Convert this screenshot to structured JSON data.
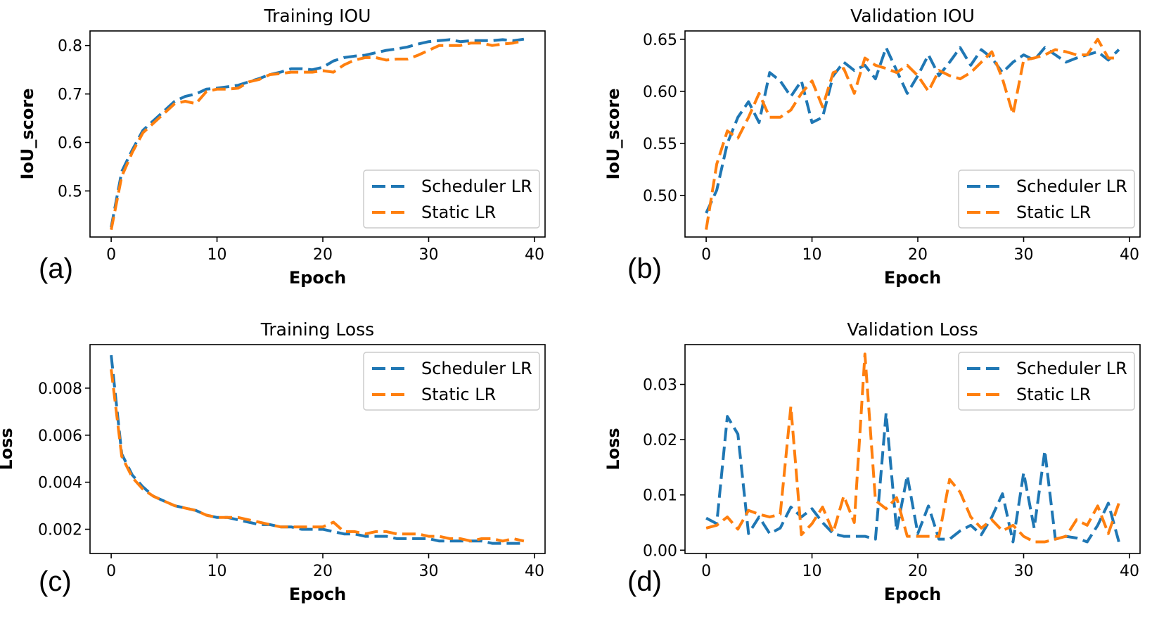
{
  "colors": {
    "scheduler": "#1f77b4",
    "static": "#ff7f0e"
  },
  "chart_data": [
    {
      "type": "line",
      "panel": "(a)",
      "title": "Training IOU",
      "xlabel": "Epoch",
      "ylabel": "IoU_score",
      "xlim": [
        -2,
        41
      ],
      "ylim": [
        0.405,
        0.83
      ],
      "xticks": [
        0,
        10,
        20,
        30,
        40
      ],
      "yticks": [
        0.5,
        0.6,
        0.7,
        0.8
      ],
      "ytick_labels": [
        "0.5",
        "0.6",
        "0.7",
        "0.8"
      ],
      "legend": "right",
      "x": [
        0,
        1,
        2,
        3,
        4,
        5,
        6,
        7,
        8,
        9,
        10,
        11,
        12,
        13,
        14,
        15,
        16,
        17,
        18,
        19,
        20,
        21,
        22,
        23,
        24,
        25,
        26,
        27,
        28,
        29,
        30,
        31,
        32,
        33,
        34,
        35,
        36,
        37,
        38,
        39
      ],
      "series": [
        {
          "name": "Scheduler LR",
          "color": "#1f77b4",
          "values": [
            0.425,
            0.54,
            0.585,
            0.625,
            0.645,
            0.665,
            0.685,
            0.695,
            0.7,
            0.71,
            0.712,
            0.715,
            0.718,
            0.725,
            0.732,
            0.74,
            0.745,
            0.752,
            0.752,
            0.75,
            0.755,
            0.768,
            0.775,
            0.778,
            0.78,
            0.785,
            0.79,
            0.793,
            0.797,
            0.803,
            0.808,
            0.81,
            0.812,
            0.808,
            0.81,
            0.81,
            0.81,
            0.812,
            0.81,
            0.813
          ]
        },
        {
          "name": "Static LR",
          "color": "#ff7f0e",
          "values": [
            0.42,
            0.53,
            0.58,
            0.62,
            0.64,
            0.66,
            0.68,
            0.685,
            0.68,
            0.705,
            0.71,
            0.71,
            0.712,
            0.725,
            0.73,
            0.74,
            0.742,
            0.745,
            0.745,
            0.745,
            0.748,
            0.745,
            0.76,
            0.77,
            0.775,
            0.775,
            0.77,
            0.772,
            0.772,
            0.78,
            0.79,
            0.8,
            0.8,
            0.8,
            0.805,
            0.805,
            0.8,
            0.803,
            0.805,
            0.81
          ]
        }
      ]
    },
    {
      "type": "line",
      "panel": "(b)",
      "title": "Validation IOU",
      "xlabel": "Epoch",
      "ylabel": "IoU_score",
      "xlim": [
        -2,
        41
      ],
      "ylim": [
        0.46,
        0.658
      ],
      "xticks": [
        0,
        10,
        20,
        30,
        40
      ],
      "yticks": [
        0.5,
        0.55,
        0.6,
        0.65
      ],
      "ytick_labels": [
        "0.50",
        "0.55",
        "0.60",
        "0.65"
      ],
      "legend": "right",
      "x": [
        0,
        1,
        2,
        3,
        4,
        5,
        6,
        7,
        8,
        9,
        10,
        11,
        12,
        13,
        14,
        15,
        16,
        17,
        18,
        19,
        20,
        21,
        22,
        23,
        24,
        25,
        26,
        27,
        28,
        29,
        30,
        31,
        32,
        33,
        34,
        35,
        36,
        37,
        38,
        39
      ],
      "series": [
        {
          "name": "Scheduler LR",
          "color": "#1f77b4",
          "values": [
            0.483,
            0.505,
            0.55,
            0.575,
            0.59,
            0.57,
            0.618,
            0.61,
            0.595,
            0.61,
            0.57,
            0.575,
            0.615,
            0.628,
            0.62,
            0.625,
            0.612,
            0.642,
            0.62,
            0.598,
            0.615,
            0.635,
            0.615,
            0.628,
            0.642,
            0.625,
            0.64,
            0.632,
            0.618,
            0.628,
            0.635,
            0.63,
            0.642,
            0.635,
            0.628,
            0.632,
            0.635,
            0.638,
            0.63,
            0.64
          ]
        },
        {
          "name": "Static LR",
          "color": "#ff7f0e",
          "values": [
            0.467,
            0.53,
            0.562,
            0.555,
            0.575,
            0.598,
            0.575,
            0.575,
            0.582,
            0.598,
            0.61,
            0.585,
            0.618,
            0.622,
            0.598,
            0.632,
            0.625,
            0.622,
            0.618,
            0.625,
            0.615,
            0.6,
            0.62,
            0.615,
            0.612,
            0.618,
            0.628,
            0.638,
            0.612,
            0.578,
            0.63,
            0.632,
            0.635,
            0.64,
            0.638,
            0.635,
            0.635,
            0.65,
            0.632,
            0.632
          ]
        }
      ]
    },
    {
      "type": "line",
      "panel": "(c)",
      "title": "Training Loss",
      "xlabel": "Epoch",
      "ylabel": "Loss",
      "xlim": [
        -2,
        41
      ],
      "ylim": [
        0.00097,
        0.00985
      ],
      "xticks": [
        0,
        10,
        20,
        30,
        40
      ],
      "yticks": [
        0.002,
        0.004,
        0.006,
        0.008
      ],
      "ytick_labels": [
        "0.002",
        "0.004",
        "0.006",
        "0.008"
      ],
      "legend": "upper right",
      "x": [
        0,
        1,
        2,
        3,
        4,
        5,
        6,
        7,
        8,
        9,
        10,
        11,
        12,
        13,
        14,
        15,
        16,
        17,
        18,
        19,
        20,
        21,
        22,
        23,
        24,
        25,
        26,
        27,
        28,
        29,
        30,
        31,
        32,
        33,
        34,
        35,
        36,
        37,
        38,
        39
      ],
      "series": [
        {
          "name": "Scheduler LR",
          "color": "#1f77b4",
          "values": [
            0.0094,
            0.0052,
            0.0043,
            0.0038,
            0.0034,
            0.0032,
            0.003,
            0.0029,
            0.0028,
            0.0026,
            0.0025,
            0.0025,
            0.0024,
            0.0023,
            0.0022,
            0.0022,
            0.0021,
            0.0021,
            0.002,
            0.002,
            0.002,
            0.0019,
            0.0018,
            0.0018,
            0.0017,
            0.0017,
            0.0017,
            0.0016,
            0.0016,
            0.0016,
            0.0016,
            0.0015,
            0.0015,
            0.0015,
            0.0015,
            0.0015,
            0.0014,
            0.0014,
            0.0014,
            0.0014
          ]
        },
        {
          "name": "Static LR",
          "color": "#ff7f0e",
          "values": [
            0.0088,
            0.0051,
            0.0042,
            0.0037,
            0.0034,
            0.0032,
            0.003,
            0.0029,
            0.0028,
            0.0026,
            0.0025,
            0.0025,
            0.0025,
            0.0024,
            0.0023,
            0.0022,
            0.0021,
            0.0021,
            0.0021,
            0.0021,
            0.0021,
            0.0023,
            0.0019,
            0.0019,
            0.0018,
            0.0019,
            0.0019,
            0.0018,
            0.0018,
            0.0018,
            0.0017,
            0.0017,
            0.0016,
            0.0016,
            0.0015,
            0.0016,
            0.0016,
            0.0015,
            0.0016,
            0.0015
          ]
        }
      ]
    },
    {
      "type": "line",
      "panel": "(d)",
      "title": "Validation Loss",
      "xlabel": "Epoch",
      "ylabel": "Loss",
      "xlim": [
        -2,
        41
      ],
      "ylim": [
        -0.0006,
        0.0372
      ],
      "xticks": [
        0,
        10,
        20,
        30,
        40
      ],
      "yticks": [
        0.0,
        0.01,
        0.02,
        0.03
      ],
      "ytick_labels": [
        "0.00",
        "0.01",
        "0.02",
        "0.03"
      ],
      "legend": "upper right",
      "x": [
        0,
        1,
        2,
        3,
        4,
        5,
        6,
        7,
        8,
        9,
        10,
        11,
        12,
        13,
        14,
        15,
        16,
        17,
        18,
        19,
        20,
        21,
        22,
        23,
        24,
        25,
        26,
        27,
        28,
        29,
        30,
        31,
        32,
        33,
        34,
        35,
        36,
        37,
        38,
        39
      ],
      "series": [
        {
          "name": "Scheduler LR",
          "color": "#1f77b4",
          "values": [
            0.0058,
            0.0048,
            0.0242,
            0.021,
            0.003,
            0.006,
            0.003,
            0.004,
            0.0078,
            0.006,
            0.0075,
            0.005,
            0.003,
            0.0025,
            0.0025,
            0.0025,
            0.002,
            0.0248,
            0.0035,
            0.0135,
            0.003,
            0.008,
            0.002,
            0.002,
            0.0035,
            0.0045,
            0.0028,
            0.006,
            0.0102,
            0.0015,
            0.014,
            0.004,
            0.018,
            0.002,
            0.0025,
            0.0022,
            0.0015,
            0.0045,
            0.0085,
            0.0015
          ]
        },
        {
          "name": "Static LR",
          "color": "#ff7f0e",
          "values": [
            0.004,
            0.0045,
            0.006,
            0.0038,
            0.0072,
            0.0065,
            0.006,
            0.0065,
            0.026,
            0.0028,
            0.0048,
            0.0078,
            0.0032,
            0.0098,
            0.005,
            0.0355,
            0.009,
            0.0075,
            0.0095,
            0.0025,
            0.0025,
            0.0025,
            0.0025,
            0.0128,
            0.0105,
            0.006,
            0.004,
            0.0055,
            0.0035,
            0.0045,
            0.0025,
            0.0015,
            0.0015,
            0.002,
            0.0025,
            0.0055,
            0.0045,
            0.008,
            0.003,
            0.0085
          ]
        }
      ]
    }
  ]
}
